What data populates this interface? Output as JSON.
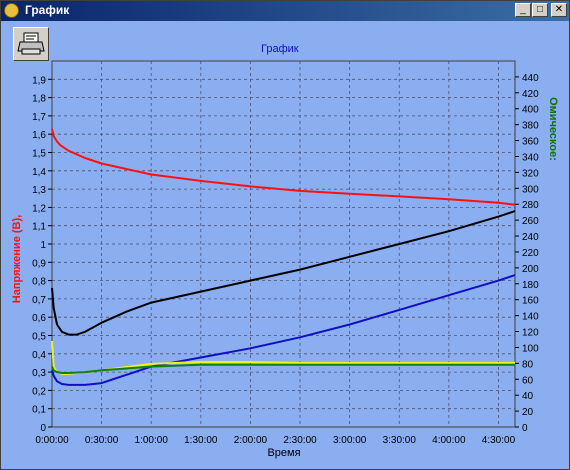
{
  "window": {
    "title": "График",
    "minimize_label": "_",
    "maximize_label": "□",
    "close_label": "✕"
  },
  "toolbar": {
    "print_icon": "printer-icon"
  },
  "chart_data": {
    "type": "line",
    "title": "График",
    "xlabel": "Время",
    "ylabel_left": "Напряжение (В),",
    "ylabel_right": "Омическое:",
    "xlim_minutes": [
      0,
      280
    ],
    "x_ticks": [
      "0:00:00",
      "0:30:00",
      "1:00:00",
      "1:30:00",
      "2:00:00",
      "2:30:00",
      "3:00:00",
      "3:30:00",
      "4:00:00",
      "4:30:00"
    ],
    "x_tick_minutes": [
      0,
      30,
      60,
      90,
      120,
      150,
      180,
      210,
      240,
      270
    ],
    "ylim_left": [
      0,
      2.0
    ],
    "left_ticks": [
      "0",
      "0,1",
      "0,2",
      "0,3",
      "0,4",
      "0,5",
      "0,6",
      "0,7",
      "0,8",
      "0,9",
      "1",
      "1,1",
      "1,2",
      "1,3",
      "1,4",
      "1,5",
      "1,6",
      "1,7",
      "1,8",
      "1,9"
    ],
    "left_tick_values": [
      0,
      0.1,
      0.2,
      0.3,
      0.4,
      0.5,
      0.6,
      0.7,
      0.8,
      0.9,
      1.0,
      1.1,
      1.2,
      1.3,
      1.4,
      1.5,
      1.6,
      1.7,
      1.8,
      1.9
    ],
    "ylim_right": [
      0,
      460
    ],
    "right_ticks": [
      "0",
      "20",
      "40",
      "60",
      "80",
      "100",
      "120",
      "140",
      "160",
      "180",
      "200",
      "220",
      "240",
      "260",
      "280",
      "300",
      "320",
      "340",
      "360",
      "380",
      "400",
      "420",
      "440"
    ],
    "right_tick_values": [
      0,
      20,
      40,
      60,
      80,
      100,
      120,
      140,
      160,
      180,
      200,
      220,
      240,
      260,
      280,
      300,
      320,
      340,
      360,
      380,
      400,
      420,
      440
    ],
    "grid": true,
    "colors": {
      "background": "#8aaef0",
      "red": "#ff1010",
      "black": "#000000",
      "blue": "#1010c0",
      "yellow": "#f0f020",
      "green": "#108010",
      "title": "#1010c0",
      "right_label": "#107010"
    },
    "series": [
      {
        "color": "red",
        "axis": "left",
        "x": [
          0,
          1,
          3,
          5,
          10,
          20,
          30,
          45,
          60,
          90,
          120,
          150,
          180,
          210,
          240,
          270,
          280
        ],
        "y": [
          1.63,
          1.59,
          1.56,
          1.54,
          1.51,
          1.47,
          1.44,
          1.41,
          1.38,
          1.345,
          1.315,
          1.29,
          1.275,
          1.26,
          1.245,
          1.225,
          1.215
        ]
      },
      {
        "color": "black",
        "axis": "left",
        "x": [
          0,
          1,
          3,
          6,
          10,
          15,
          20,
          30,
          45,
          60,
          90,
          120,
          150,
          180,
          210,
          240,
          270,
          280
        ],
        "y": [
          0.76,
          0.65,
          0.56,
          0.52,
          0.505,
          0.505,
          0.52,
          0.57,
          0.63,
          0.68,
          0.74,
          0.8,
          0.86,
          0.93,
          1.0,
          1.07,
          1.15,
          1.18
        ]
      },
      {
        "color": "blue",
        "axis": "left",
        "x": [
          0,
          1,
          3,
          6,
          10,
          20,
          30,
          40,
          60,
          90,
          120,
          150,
          180,
          210,
          240,
          270,
          280
        ],
        "y": [
          0.31,
          0.28,
          0.25,
          0.235,
          0.23,
          0.23,
          0.24,
          0.27,
          0.33,
          0.38,
          0.43,
          0.49,
          0.56,
          0.64,
          0.72,
          0.8,
          0.83
        ]
      },
      {
        "color": "yellow",
        "axis": "left",
        "x": [
          0,
          1,
          3,
          6,
          10,
          20,
          30,
          60,
          90,
          120,
          150,
          180,
          210,
          240,
          270,
          280
        ],
        "y": [
          0.47,
          0.33,
          0.3,
          0.29,
          0.29,
          0.3,
          0.31,
          0.345,
          0.355,
          0.355,
          0.35,
          0.35,
          0.35,
          0.35,
          0.35,
          0.35
        ]
      },
      {
        "color": "green",
        "axis": "left",
        "x": [
          0,
          1,
          3,
          6,
          10,
          20,
          30,
          60,
          90,
          120,
          150,
          180,
          210,
          240,
          270,
          280
        ],
        "y": [
          0.33,
          0.31,
          0.3,
          0.295,
          0.295,
          0.3,
          0.31,
          0.33,
          0.34,
          0.34,
          0.34,
          0.34,
          0.34,
          0.34,
          0.34,
          0.34
        ]
      }
    ]
  }
}
